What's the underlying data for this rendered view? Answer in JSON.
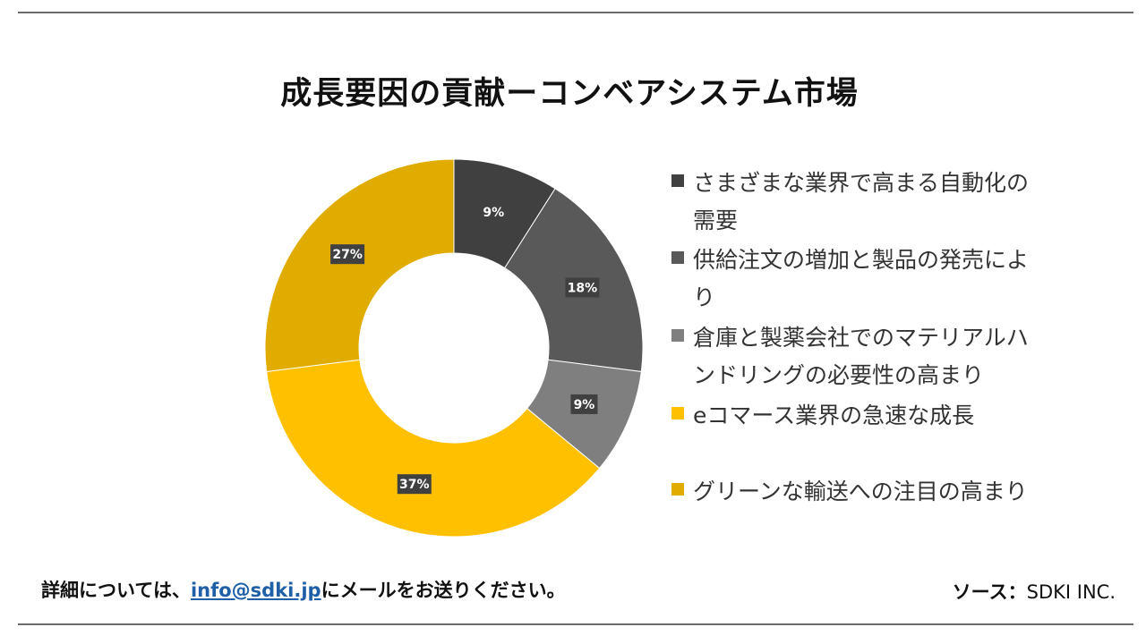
{
  "title": "成長要因の貢献ーコンベアシステム市場",
  "chart_data": {
    "type": "pie",
    "subtype": "donut",
    "categories": [
      "さまざまな業界で高まる自動化の需要",
      "供給注文の増加と製品の発売により",
      "倉庫と製薬会社でのマテリアルハンドリングの必要性の高まり",
      "eコマース業界の急速な成長",
      "グリーンな輸送への注目の高まり"
    ],
    "values": [
      9,
      18,
      9,
      37,
      27
    ],
    "data_labels": [
      "9%",
      "18%",
      "9%",
      "37%",
      "27%"
    ],
    "colors": [
      "#404040",
      "#595959",
      "#7f7f7f",
      "#ffc000",
      "#e0ac00"
    ],
    "legend_position": "right"
  },
  "legend": {
    "items": [
      {
        "lines": [
          "さまざまな業界で高まる自動化の",
          "需要"
        ],
        "color": "#404040"
      },
      {
        "lines": [
          "供給注文の増加と製品の発売によ",
          "り"
        ],
        "color": "#595959"
      },
      {
        "lines": [
          "倉庫と製薬会社でのマテリアルハ",
          "ンドリングの必要性の高まり"
        ],
        "color": "#7f7f7f"
      },
      {
        "lines": [
          "eコマース業界の急速な成長"
        ],
        "color": "#ffc000"
      },
      {
        "lines": [
          "グリーンな輸送への注目の高まり"
        ],
        "color": "#e0ac00"
      }
    ]
  },
  "footer": {
    "contact_prefix": "詳細については、",
    "contact_email": "info@sdki.jp",
    "contact_suffix": "にメールをお送りください。",
    "source_label": "ソース：",
    "source_value": "SDKI INC."
  }
}
